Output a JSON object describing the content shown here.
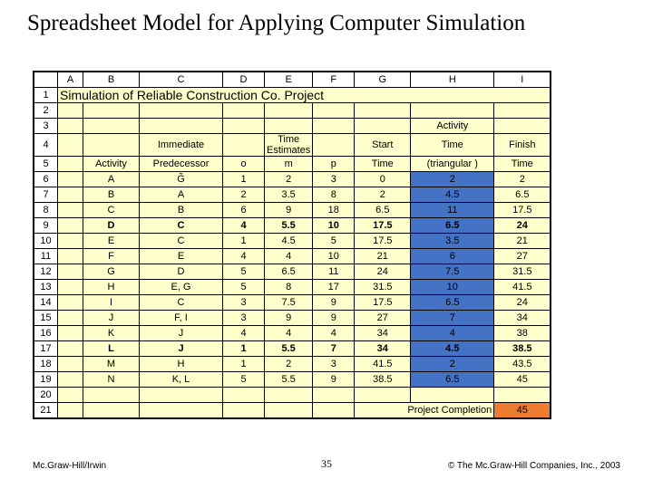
{
  "slide": {
    "title": "Spreadsheet Model for Applying Computer Simulation",
    "page_number": "35",
    "footer_left": "Mc.Graw-Hill/Irwin",
    "footer_right": "© The Mc.Graw-Hill Companies, Inc., 2003"
  },
  "spreadsheet": {
    "background_color": "#ffffcc",
    "highlight_blue": "#4472c4",
    "highlight_orange": "#ed7d31",
    "columns": [
      "A",
      "B",
      "C",
      "D",
      "E",
      "F",
      "G",
      "H",
      "I"
    ],
    "col_widths": {
      "rownum": 26,
      "A": 28,
      "B": 62,
      "C": 92,
      "D": 46,
      "E": 46,
      "F": 46,
      "G": 62,
      "H": 92,
      "I": 62
    },
    "title_row": {
      "row": 1,
      "text": "Simulation of Reliable Construction Co. Project",
      "fontsize": 14,
      "bold": true
    },
    "header_block": {
      "row3": {
        "H": "Activity"
      },
      "row4": {
        "C": "Immediate",
        "E": "Time Estimates",
        "G": "Start",
        "H": "Time",
        "I": "Finish"
      },
      "row5": {
        "B": "Activity",
        "C": "Predecessor",
        "D": "o",
        "E": "m",
        "F": "p",
        "G": "Time",
        "H": "(triangular )",
        "I": "Time"
      }
    },
    "data_rows": [
      {
        "row": 6,
        "activity": "A",
        "pred": "G̃",
        "o": "1",
        "m": "2",
        "p": "3",
        "start": "0",
        "time": "2",
        "finish": "2"
      },
      {
        "row": 7,
        "activity": "B",
        "pred": "A",
        "o": "2",
        "m": "3.5",
        "p": "8",
        "start": "2",
        "time": "4.5",
        "finish": "6.5"
      },
      {
        "row": 8,
        "activity": "C",
        "pred": "B",
        "o": "6",
        "m": "9",
        "p": "18",
        "start": "6.5",
        "time": "11",
        "finish": "17.5"
      },
      {
        "row": 9,
        "activity": "D",
        "pred": "C",
        "o": "4",
        "m": "5.5",
        "p": "10",
        "start": "17.5",
        "time": "6.5",
        "finish": "24",
        "bold": true
      },
      {
        "row": 10,
        "activity": "E",
        "pred": "C",
        "o": "1",
        "m": "4.5",
        "p": "5",
        "start": "17.5",
        "time": "3.5",
        "finish": "21"
      },
      {
        "row": 11,
        "activity": "F",
        "pred": "E",
        "o": "4",
        "m": "4",
        "p": "10",
        "start": "21",
        "time": "6",
        "finish": "27"
      },
      {
        "row": 12,
        "activity": "G",
        "pred": "D",
        "o": "5",
        "m": "6.5",
        "p": "11",
        "start": "24",
        "time": "7.5",
        "finish": "31.5"
      },
      {
        "row": 13,
        "activity": "H",
        "pred": "E, G",
        "o": "5",
        "m": "8",
        "p": "17",
        "start": "31.5",
        "time": "10",
        "finish": "41.5"
      },
      {
        "row": 14,
        "activity": "I",
        "pred": "C",
        "o": "3",
        "m": "7.5",
        "p": "9",
        "start": "17.5",
        "time": "6.5",
        "finish": "24"
      },
      {
        "row": 15,
        "activity": "J",
        "pred": "F, I",
        "o": "3",
        "m": "9",
        "p": "9",
        "start": "27",
        "time": "7",
        "finish": "34"
      },
      {
        "row": 16,
        "activity": "K",
        "pred": "J",
        "o": "4",
        "m": "4",
        "p": "4",
        "start": "34",
        "time": "4",
        "finish": "38"
      },
      {
        "row": 17,
        "activity": "L",
        "pred": "J",
        "o": "1",
        "m": "5.5",
        "p": "7",
        "start": "34",
        "time": "4.5",
        "finish": "38.5",
        "bold": true
      },
      {
        "row": 18,
        "activity": "M",
        "pred": "H",
        "o": "1",
        "m": "2",
        "p": "3",
        "start": "41.5",
        "time": "2",
        "finish": "43.5"
      },
      {
        "row": 19,
        "activity": "N",
        "pred": "K, L",
        "o": "5",
        "m": "5.5",
        "p": "9",
        "start": "38.5",
        "time": "6.5",
        "finish": "45"
      }
    ],
    "completion_row": {
      "row": 21,
      "label": "Project Completion",
      "value": "45"
    },
    "row_count": 21
  }
}
